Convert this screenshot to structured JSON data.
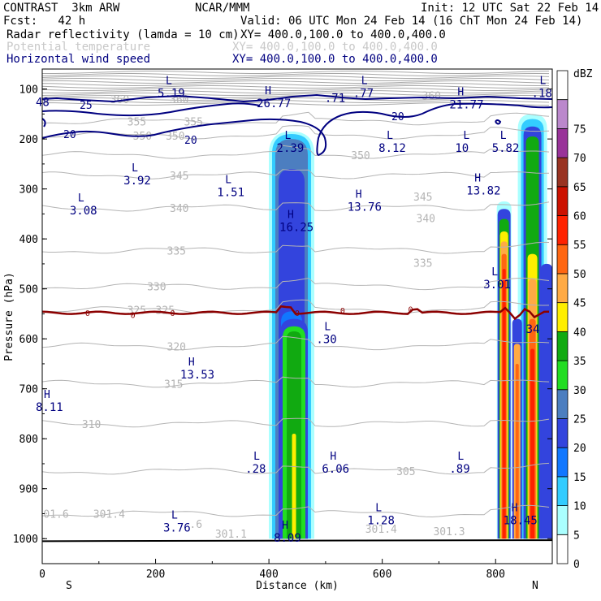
{
  "header": {
    "model": "CONTRAST  3km ARW",
    "org": "NCAR/MMM",
    "init": "Init: 12 UTC Sat 22 Feb 14",
    "fcst": "Fcst:   42 h",
    "valid": "Valid: 06 UTC Mon 24 Feb 14 (16 ChT Mon 24 Feb 14)",
    "fields": [
      {
        "name": "Radar reflectivity (lamda = 10 cm)",
        "xy": "XY= 400.0,100.0 to 400.0,400.0",
        "color": "#000000"
      },
      {
        "name": "Potential temperature",
        "xy": "XY= 400.0,100.0 to 400.0,400.0",
        "color": "#c8c8c8"
      },
      {
        "name": "Horizontal wind speed",
        "xy": "XY= 400.0,100.0 to 400.0,400.0",
        "color": "#000080"
      }
    ]
  },
  "chart_data": {
    "type": "heatmap",
    "xlabel": "Distance (km)",
    "ylabel": "Pressure (hPa)",
    "x_ticks": [
      "0",
      "200",
      "400",
      "600",
      "800"
    ],
    "x_tick_values": [
      0,
      200,
      400,
      600,
      800
    ],
    "x_end_labels": [
      "S",
      "N"
    ],
    "xlim": [
      0,
      900
    ],
    "y_ticks": [
      "100",
      "200",
      "300",
      "400",
      "500",
      "600",
      "700",
      "800",
      "900",
      "1000"
    ],
    "y_tick_values": [
      100,
      200,
      300,
      400,
      500,
      600,
      700,
      800,
      900,
      1000
    ],
    "ylim": [
      60,
      1050
    ],
    "colorbar": {
      "unit": "dBZ",
      "levels": [
        "0",
        "5",
        "10",
        "15",
        "20",
        "25",
        "30",
        "35",
        "40",
        "45",
        "50",
        "55",
        "60",
        "65",
        "70",
        "75"
      ],
      "colors": [
        "#ffffff",
        "#aaffff",
        "#33ccff",
        "#1177ff",
        "#3344dd",
        "#4c7ec0",
        "#22dd22",
        "#11aa11",
        "#ffee00",
        "#ffaa44",
        "#ff6611",
        "#ff2200",
        "#cc1100",
        "#993322",
        "#993399",
        "#bb88cc"
      ]
    },
    "reflectivity_cores": [
      {
        "x_km": 440,
        "top_hPa": 200,
        "base_hPa": 1000
      },
      {
        "x_km": 815,
        "top_hPa": 330,
        "base_hPa": 1000
      },
      {
        "x_km": 865,
        "top_hPa": 160,
        "base_hPa": 1000
      }
    ],
    "theta_labels": [
      {
        "x": 120,
        "p": 120,
        "v": "360"
      },
      {
        "x": 225,
        "p": 120,
        "v": "360"
      },
      {
        "x": 670,
        "p": 113,
        "v": "360"
      },
      {
        "x": 150,
        "p": 165,
        "v": "355"
      },
      {
        "x": 250,
        "p": 165,
        "v": "355"
      },
      {
        "x": 160,
        "p": 193,
        "v": "350"
      },
      {
        "x": 218,
        "p": 193,
        "v": "350"
      },
      {
        "x": 545,
        "p": 232,
        "v": "350"
      },
      {
        "x": 225,
        "p": 273,
        "v": "345"
      },
      {
        "x": 655,
        "p": 315,
        "v": "345"
      },
      {
        "x": 225,
        "p": 338,
        "v": "340"
      },
      {
        "x": 660,
        "p": 358,
        "v": "340"
      },
      {
        "x": 220,
        "p": 423,
        "v": "335"
      },
      {
        "x": 655,
        "p": 448,
        "v": "335"
      },
      {
        "x": 185,
        "p": 495,
        "v": "330"
      },
      {
        "x": 150,
        "p": 542,
        "v": "325"
      },
      {
        "x": 200,
        "p": 542,
        "v": "325"
      },
      {
        "x": 220,
        "p": 615,
        "v": "320"
      },
      {
        "x": 215,
        "p": 690,
        "v": "315"
      },
      {
        "x": 70,
        "p": 770,
        "v": "310"
      },
      {
        "x": 625,
        "p": 865,
        "v": "305"
      },
      {
        "x": 2,
        "p": 950,
        "v": "01.6"
      },
      {
        "x": 90,
        "p": 950,
        "v": "301.4"
      },
      {
        "x": 260,
        "p": 970,
        "v": ".6"
      },
      {
        "x": 305,
        "p": 990,
        "v": "301.1"
      },
      {
        "x": 570,
        "p": 980,
        "v": "301.4"
      },
      {
        "x": 690,
        "p": 985,
        "v": "301.3"
      }
    ],
    "wind_contours": [
      "25",
      "20",
      "20",
      "20",
      "0",
      "0",
      "0",
      "0",
      "0",
      "0",
      "0",
      "0"
    ],
    "extrema": [
      {
        "t": "L",
        "x": 215,
        "p": 90,
        "v": "5.19"
      },
      {
        "t": "",
        "x": 510,
        "p": 100,
        "v": ".71"
      },
      {
        "t": "L",
        "x": 560,
        "p": 90,
        "v": ".77"
      },
      {
        "t": "H",
        "x": 390,
        "p": 110,
        "v": "26.77"
      },
      {
        "t": "H",
        "x": 730,
        "p": 113,
        "v": "21.77"
      },
      {
        "t": "L",
        "x": 875,
        "p": 90,
        "v": ".18"
      },
      {
        "t": "",
        "x": 0,
        "p": 108,
        "v": "48"
      },
      {
        "t": "L",
        "x": 425,
        "p": 200,
        "v": "2.39"
      },
      {
        "t": "L",
        "x": 605,
        "p": 200,
        "v": "8.12"
      },
      {
        "t": "L",
        "x": 740,
        "p": 200,
        "v": "10"
      },
      {
        "t": "L",
        "x": 805,
        "p": 200,
        "v": "5.82"
      },
      {
        "t": "L",
        "x": 155,
        "p": 265,
        "v": "3.92"
      },
      {
        "t": "L",
        "x": 320,
        "p": 288,
        "v": "1.51"
      },
      {
        "t": "H",
        "x": 760,
        "p": 285,
        "v": "13.82"
      },
      {
        "t": "L",
        "x": 60,
        "p": 325,
        "v": "3.08"
      },
      {
        "t": "H",
        "x": 550,
        "p": 318,
        "v": "13.76"
      },
      {
        "t": "H",
        "x": 430,
        "p": 358,
        "v": "16.25"
      },
      {
        "t": "L",
        "x": 790,
        "p": 473,
        "v": "3.01"
      },
      {
        "t": "",
        "x": 865,
        "p": 562,
        "v": "34"
      },
      {
        "t": "L",
        "x": 495,
        "p": 583,
        "v": ".30"
      },
      {
        "t": "H",
        "x": 255,
        "p": 653,
        "v": "13.53"
      },
      {
        "t": "H",
        "x": 0,
        "p": 718,
        "v": "8.11"
      },
      {
        "t": "L",
        "x": 370,
        "p": 842,
        "v": ".28"
      },
      {
        "t": "H",
        "x": 505,
        "p": 842,
        "v": "6.06"
      },
      {
        "t": "L",
        "x": 730,
        "p": 842,
        "v": ".89"
      },
      {
        "t": "L",
        "x": 585,
        "p": 945,
        "v": "1.28"
      },
      {
        "t": "H",
        "x": 825,
        "p": 945,
        "v": "18.45"
      },
      {
        "t": "L",
        "x": 225,
        "p": 960,
        "v": "3.76"
      },
      {
        "t": "H",
        "x": 420,
        "p": 980,
        "v": "8.09"
      }
    ]
  }
}
